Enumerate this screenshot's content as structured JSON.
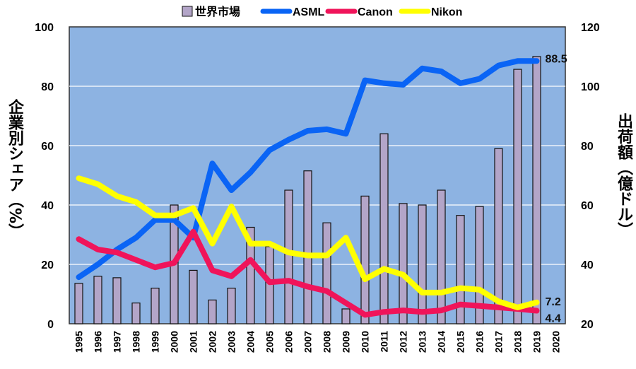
{
  "chart_data": {
    "type": "bar+line",
    "categories": [
      "1995",
      "1996",
      "1997",
      "1998",
      "1999",
      "2000",
      "2001",
      "2002",
      "2003",
      "2004",
      "2005",
      "2006",
      "2007",
      "2008",
      "2009",
      "2010",
      "2011",
      "2012",
      "2013",
      "2014",
      "2015",
      "2016",
      "2017",
      "2018",
      "2019",
      "2020"
    ],
    "ylabel_left": "企業別シェア（%）",
    "ylabel_right": "出荷額（億ドル）",
    "ylim_left": [
      0,
      100
    ],
    "ylim_right": [
      20,
      120
    ],
    "yticks_left": [
      "0",
      "20",
      "40",
      "60",
      "80",
      "100"
    ],
    "yticks_right": [
      "20",
      "40",
      "60",
      "80",
      "100",
      "120"
    ],
    "grid": true,
    "legend_position": "top",
    "bars": {
      "name": "世界市場",
      "axis": "right",
      "color": "#b3a5c8",
      "values": [
        33.6,
        36,
        35.5,
        27,
        32,
        60,
        38,
        28,
        32,
        52.5,
        46,
        65,
        71.5,
        54,
        25,
        63,
        84,
        60.5,
        60,
        65,
        56.5,
        59.5,
        79,
        105.7,
        110,
        null
      ]
    },
    "series": [
      {
        "name": "ASML",
        "axis": "left",
        "color": "#0a64f5",
        "values": [
          15.7,
          20,
          25,
          29,
          35,
          35,
          29,
          54,
          45,
          51,
          58.5,
          62,
          65,
          65.5,
          64,
          82,
          81,
          80.5,
          86,
          85,
          81,
          82.5,
          87,
          88.5,
          88.5,
          null
        ]
      },
      {
        "name": "Canon",
        "axis": "left",
        "color": "#f0145a",
        "values": [
          28.5,
          25,
          24,
          21.5,
          19,
          20.5,
          31,
          18,
          16,
          21.5,
          14,
          14.5,
          12.5,
          11,
          7,
          3,
          4,
          4.5,
          4,
          4.5,
          6.5,
          6,
          5.5,
          5,
          4.4,
          null
        ]
      },
      {
        "name": "Nikon",
        "axis": "left",
        "color": "#ffff00",
        "values": [
          49,
          47,
          43,
          41,
          36.5,
          36.5,
          39,
          27,
          39.5,
          27,
          27,
          24,
          23,
          23,
          29,
          15,
          18.5,
          16.5,
          10.5,
          10.5,
          12,
          11.5,
          7.5,
          5.5,
          7.2,
          null
        ]
      }
    ],
    "annotations": [
      "88.5",
      "7.2",
      "4.4"
    ]
  }
}
